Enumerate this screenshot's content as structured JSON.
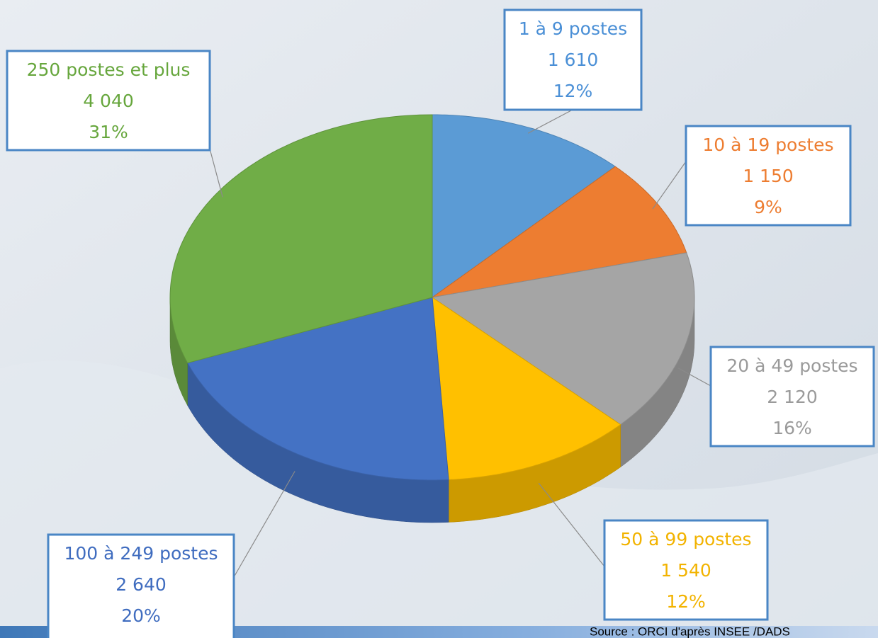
{
  "chart_data": {
    "type": "pie",
    "categories": [
      "1 à 9 postes",
      "10 à 19 postes",
      "20 à 49 postes",
      "50 à 99 postes",
      "100 à 249 postes",
      "250 postes et plus"
    ],
    "values": [
      1610,
      1150,
      2120,
      1540,
      2640,
      4040
    ],
    "value_labels": [
      "1 610",
      "1 150",
      "2 120",
      "1 540",
      "2 640",
      "4 040"
    ],
    "percent_labels": [
      "12%",
      "9%",
      "16%",
      "12%",
      "20%",
      "31%"
    ],
    "colors": [
      "#5b9bd5",
      "#ed7d31",
      "#a5a5a5",
      "#ffc000",
      "#4472c4",
      "#70ad47"
    ],
    "label_colors": [
      "#4a8fd6",
      "#ed7d31",
      "#9a9a9a",
      "#f2b300",
      "#3f6cbf",
      "#66a63c"
    ],
    "source": "Source : ORCI d'après INSEE /DADS"
  }
}
